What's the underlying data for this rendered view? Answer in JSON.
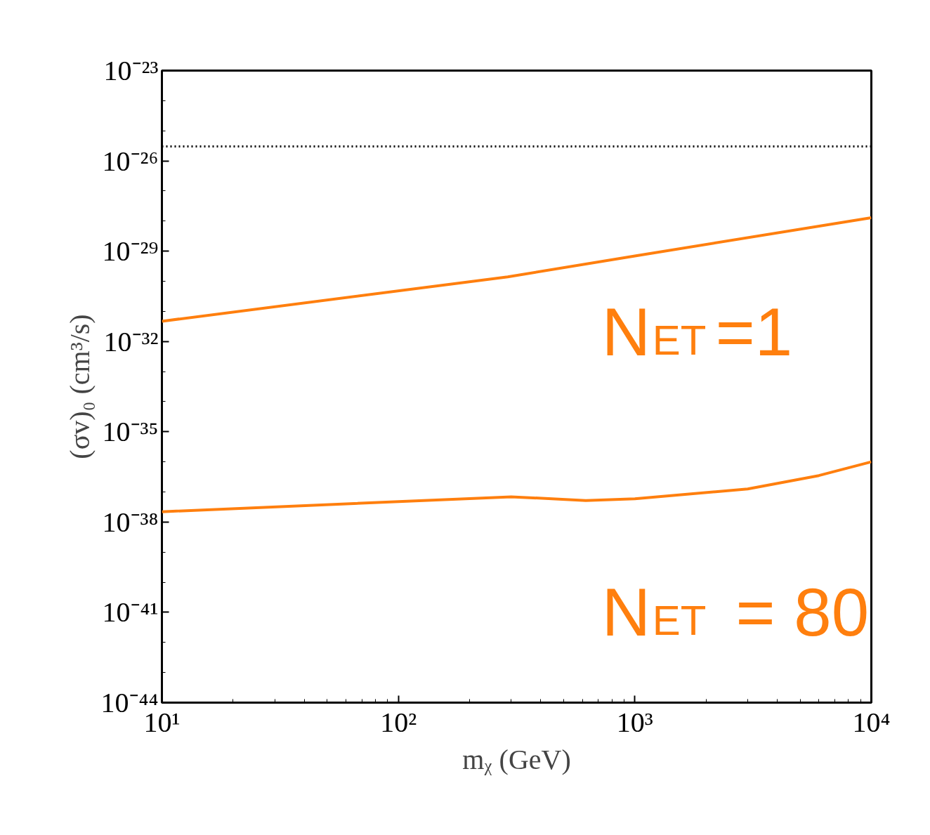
{
  "chart_data": {
    "type": "line",
    "log": "xy",
    "xlabel": "mᵪ (GeV)",
    "ylabel": "(σv)₀ (cm³/s)",
    "xlim": [
      10,
      10000
    ],
    "ylim": [
      1e-44,
      1e-23
    ],
    "xticks": [
      {
        "value": 10,
        "label": "10¹"
      },
      {
        "value": 100,
        "label": "10²"
      },
      {
        "value": 1000,
        "label": "10³"
      },
      {
        "value": 10000,
        "label": "10⁴"
      }
    ],
    "yticks": [
      {
        "value": 1e-44,
        "label": "10⁻⁴⁴"
      },
      {
        "value": 1e-41,
        "label": "10⁻⁴¹"
      },
      {
        "value": 1e-38,
        "label": "10⁻³⁸"
      },
      {
        "value": 1e-35,
        "label": "10⁻³⁵"
      },
      {
        "value": 1e-32,
        "label": "10⁻³²"
      },
      {
        "value": 1e-29,
        "label": "10⁻²⁹"
      },
      {
        "value": 1e-26,
        "label": "10⁻²⁶"
      },
      {
        "value": 1e-23,
        "label": "10⁻²³"
      }
    ],
    "grid": false,
    "marker": "none",
    "line_style": "solid",
    "ref_lines": [
      {
        "axis": "y",
        "value": 3e-26,
        "color": "#000000",
        "line_style": "dotted"
      }
    ],
    "series": [
      {
        "name": "N$_{ET}$=1",
        "color": "#ff7f0e",
        "x": [
          10,
          290,
          1000,
          10000
        ],
        "values": [
          4.7e-32,
          1.4e-30,
          6.9e-30,
          1.3e-28
        ]
      },
      {
        "name": "N$_{ET}$ = 80",
        "color": "#ff7f0e",
        "x": [
          10,
          300,
          620,
          1000,
          3000,
          6000,
          10000
        ],
        "values": [
          2.2e-38,
          6.9e-38,
          5.2e-38,
          5.9e-38,
          1.26e-37,
          3.5e-37,
          1e-36
        ]
      }
    ]
  }
}
